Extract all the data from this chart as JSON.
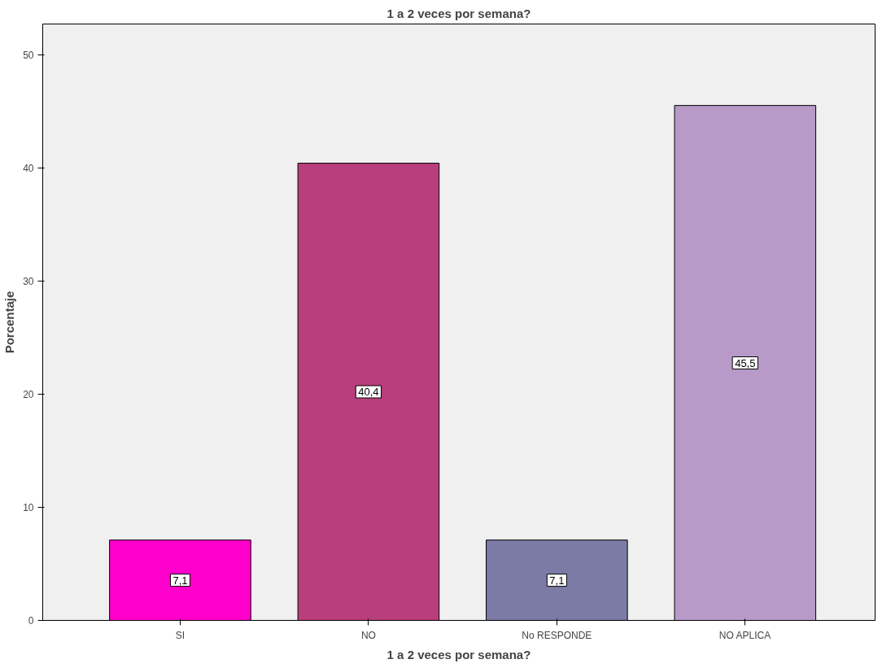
{
  "chart_data": {
    "type": "bar",
    "title": "1 a 2 veces por semana?",
    "xlabel": "1 a 2 veces por semana?",
    "ylabel": "Porcentaje",
    "categories": [
      "SI",
      "NO",
      "No RESPONDE",
      "NO APLICA"
    ],
    "values": [
      7.1,
      40.4,
      7.1,
      45.5
    ],
    "colors": [
      "#ff00cc",
      "#b93e7c",
      "#7b7ba6",
      "#b79ac8"
    ],
    "value_labels": [
      "7,1",
      "40,4",
      "7,1",
      "45,5"
    ],
    "ylim": [
      0,
      52.7
    ],
    "yticks": [
      0,
      10,
      20,
      30,
      40,
      50
    ],
    "grid": false
  }
}
